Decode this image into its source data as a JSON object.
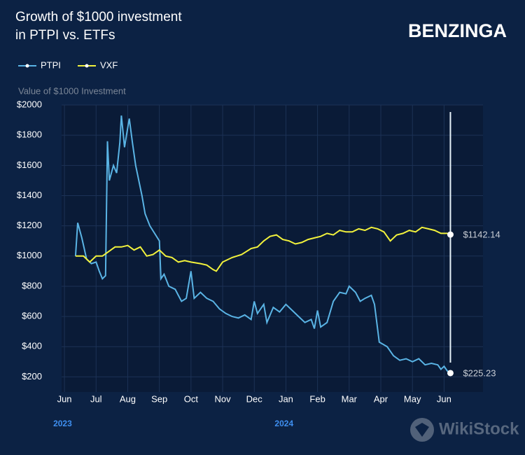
{
  "chart_data": {
    "type": "line",
    "title": [
      "Growth of $1000 investment",
      "in PTPI vs. ETFs"
    ],
    "brand": "BENZINGA",
    "watermark": "WikiStock",
    "y_label": "Value of $1000 Investment",
    "xlim": [
      -0.09,
      13.23
    ],
    "ylim": [
      100,
      2000
    ],
    "xticks": [
      {
        "value": 0,
        "label": "Jun"
      },
      {
        "value": 1,
        "label": "Jul"
      },
      {
        "value": 2,
        "label": "Aug"
      },
      {
        "value": 3,
        "label": "Sep"
      },
      {
        "value": 4,
        "label": "Oct"
      },
      {
        "value": 5,
        "label": "Nov"
      },
      {
        "value": 6,
        "label": "Dec"
      },
      {
        "value": 7,
        "label": "Jan"
      },
      {
        "value": 8,
        "label": "Feb"
      },
      {
        "value": 9,
        "label": "Mar"
      },
      {
        "value": 10,
        "label": "Apr"
      },
      {
        "value": 11,
        "label": "May"
      },
      {
        "value": 12,
        "label": "Jun"
      }
    ],
    "year_ticks": [
      {
        "value": 0,
        "label": "2023"
      },
      {
        "value": 7,
        "label": "2024"
      }
    ],
    "yticks": [
      {
        "value": 200,
        "label": "$200"
      },
      {
        "value": 400,
        "label": "$400"
      },
      {
        "value": 600,
        "label": "$600"
      },
      {
        "value": 800,
        "label": "$800"
      },
      {
        "value": 1000,
        "label": "$1000"
      },
      {
        "value": 1200,
        "label": "$1200"
      },
      {
        "value": 1400,
        "label": "$1400"
      },
      {
        "value": 1600,
        "label": "$1600"
      },
      {
        "value": 1800,
        "label": "$1800"
      },
      {
        "value": 2000,
        "label": "$2000"
      }
    ],
    "grid": true,
    "series": [
      {
        "name": "PTPI",
        "color": "#5ab4e5",
        "end_label": "$225.23",
        "x": [
          0.35,
          0.42,
          0.55,
          0.7,
          0.85,
          1.0,
          1.1,
          1.2,
          1.3,
          1.36,
          1.42,
          1.55,
          1.65,
          1.75,
          1.8,
          1.9,
          2.0,
          2.05,
          2.15,
          2.25,
          2.35,
          2.45,
          2.55,
          2.7,
          2.85,
          3.0,
          3.05,
          3.15,
          3.3,
          3.5,
          3.7,
          3.85,
          4.0,
          4.1,
          4.3,
          4.5,
          4.7,
          4.9,
          5.1,
          5.3,
          5.5,
          5.7,
          5.9,
          6.0,
          6.1,
          6.3,
          6.4,
          6.6,
          6.8,
          7.0,
          7.2,
          7.4,
          7.6,
          7.8,
          7.9,
          8.0,
          8.1,
          8.3,
          8.5,
          8.7,
          8.9,
          9.0,
          9.2,
          9.35,
          9.5,
          9.7,
          9.8,
          9.95,
          10.2,
          10.4,
          10.6,
          10.8,
          11.0,
          11.2,
          11.4,
          11.6,
          11.8,
          11.9,
          12.0,
          12.1,
          12.2
        ],
        "values": [
          1000,
          1220,
          1120,
          980,
          950,
          960,
          900,
          850,
          870,
          1760,
          1500,
          1600,
          1550,
          1750,
          1930,
          1720,
          1850,
          1910,
          1750,
          1600,
          1500,
          1400,
          1280,
          1200,
          1150,
          1100,
          850,
          880,
          800,
          780,
          700,
          720,
          900,
          720,
          760,
          720,
          700,
          650,
          620,
          600,
          590,
          610,
          580,
          700,
          620,
          680,
          560,
          660,
          630,
          680,
          640,
          600,
          560,
          580,
          520,
          640,
          530,
          560,
          700,
          760,
          750,
          800,
          760,
          700,
          720,
          740,
          680,
          430,
          400,
          340,
          310,
          320,
          300,
          320,
          280,
          290,
          280,
          250,
          270,
          240,
          225.23
        ]
      },
      {
        "name": "VXF",
        "color": "#f2f23c",
        "end_label": "$1142.14",
        "x": [
          0.35,
          0.6,
          0.8,
          1.0,
          1.2,
          1.4,
          1.6,
          1.8,
          2.0,
          2.2,
          2.4,
          2.6,
          2.8,
          3.0,
          3.2,
          3.4,
          3.6,
          3.8,
          4.0,
          4.3,
          4.5,
          4.7,
          4.8,
          5.0,
          5.3,
          5.6,
          5.9,
          6.1,
          6.3,
          6.5,
          6.7,
          6.9,
          7.1,
          7.3,
          7.5,
          7.7,
          7.9,
          8.1,
          8.3,
          8.5,
          8.7,
          8.9,
          9.1,
          9.3,
          9.5,
          9.7,
          9.9,
          10.1,
          10.3,
          10.5,
          10.7,
          10.9,
          11.1,
          11.3,
          11.5,
          11.7,
          11.9,
          12.1,
          12.2
        ],
        "values": [
          1000,
          1000,
          960,
          1000,
          1000,
          1030,
          1060,
          1060,
          1070,
          1040,
          1060,
          1000,
          1010,
          1040,
          1000,
          990,
          960,
          970,
          960,
          950,
          940,
          910,
          900,
          960,
          990,
          1010,
          1050,
          1060,
          1100,
          1130,
          1140,
          1110,
          1100,
          1080,
          1090,
          1110,
          1120,
          1130,
          1150,
          1140,
          1170,
          1160,
          1160,
          1180,
          1170,
          1190,
          1180,
          1160,
          1100,
          1140,
          1150,
          1170,
          1160,
          1190,
          1180,
          1170,
          1150,
          1150,
          1142.14
        ]
      }
    ]
  }
}
